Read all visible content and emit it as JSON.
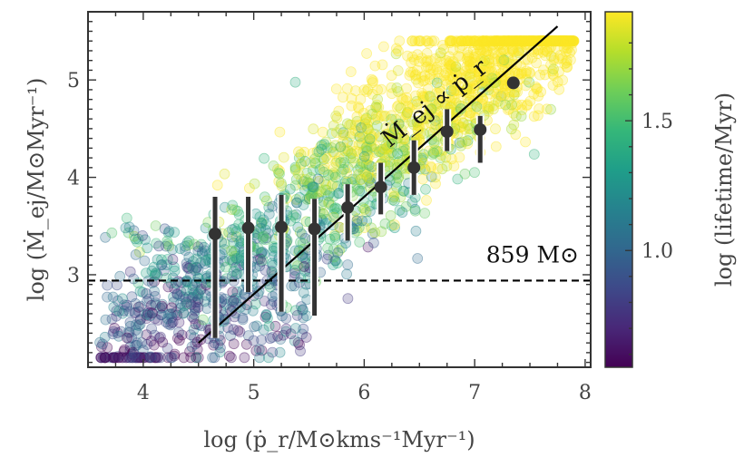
{
  "chart_data": {
    "type": "scatter",
    "xlabel": "log (ṗ_r/M⊙kms⁻¹Myr⁻¹)",
    "ylabel": "log (Ṁ_ej/M⊙Myr⁻¹)",
    "xlim": [
      3.5,
      8.05
    ],
    "ylim": [
      2.05,
      5.7
    ],
    "x_ticks": [
      "4",
      "5",
      "6",
      "7",
      "8"
    ],
    "y_ticks": [
      "3",
      "4",
      "5"
    ],
    "colorbar": {
      "label": "log (lifetime/Myr)",
      "range": [
        0.55,
        1.92
      ],
      "ticks": [
        "1.0",
        "1.5"
      ],
      "colormap": "viridis",
      "stops": [
        "#440154",
        "#482878",
        "#3e4989",
        "#31688e",
        "#26828e",
        "#1f9e89",
        "#35b779",
        "#6ece58",
        "#b5de2b",
        "#fde725"
      ]
    },
    "scatter_cloud": {
      "description_count": 2200,
      "alpha": 0.25,
      "point_color_range": "viridis by lifetime"
    },
    "binned_medians": {
      "x": [
        4.65,
        4.95,
        5.25,
        5.55,
        5.85,
        6.15,
        6.45,
        6.75,
        7.05,
        7.35
      ],
      "y": [
        3.42,
        3.48,
        3.49,
        3.47,
        3.69,
        3.9,
        4.1,
        4.47,
        4.49,
        4.97
      ],
      "y_low": [
        2.35,
        2.82,
        2.62,
        2.58,
        3.35,
        3.62,
        3.82,
        4.27,
        4.15,
        4.97
      ],
      "y_high": [
        3.8,
        3.8,
        3.82,
        3.78,
        3.93,
        4.15,
        4.38,
        4.7,
        4.63,
        4.97
      ],
      "color": "#333333"
    },
    "fit_line": {
      "x": [
        4.5,
        7.75
      ],
      "y": [
        2.3,
        5.55
      ],
      "label": "Ṁ_ej ∝ ṗ_r",
      "color": "#000000"
    },
    "threshold_line": {
      "y": 2.94,
      "label": "859 M⊙",
      "style": "dashed",
      "color": "#000000"
    },
    "grid": false
  }
}
